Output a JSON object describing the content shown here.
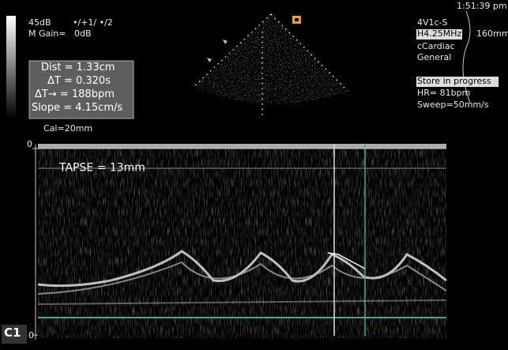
{
  "header": {
    "gain": "45dB",
    "persistence": "•/+1/ •/2",
    "m_gain_label": "M Gain=",
    "m_gain_value": "0dB"
  },
  "measurements": [
    "Dist = 1.33cm",
    "ΔT = 0.320s",
    "ΔT→ = 188bpm",
    "Slope = 4.15cm/s"
  ],
  "calibration": "Cal=20mm",
  "right_panel": {
    "time": "1:51:39 pm",
    "probe": "4V1c-S",
    "frequency": "H4.25MHz",
    "depth": "160mm",
    "preset": "cCardiac",
    "mode": "General",
    "status": "Store in progress",
    "heart_rate": "HR= 81bpm",
    "sweep": "Sweep=50mm/s"
  },
  "annotation": "TAPSE = 13mm",
  "depth_scale": {
    "top": "0",
    "bottom": "0"
  },
  "label": "C1"
}
